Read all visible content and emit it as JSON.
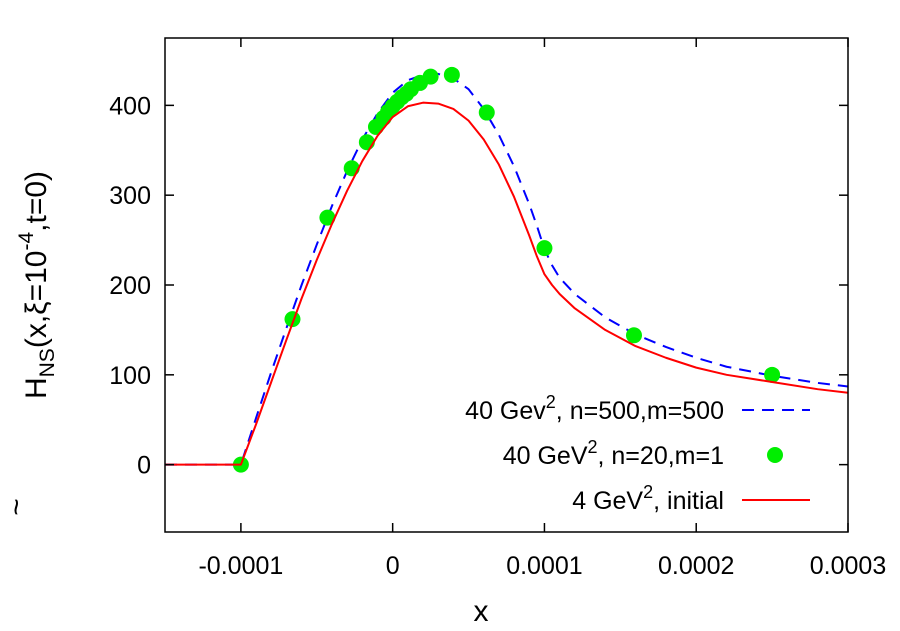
{
  "chart_data": {
    "type": "line",
    "xlabel": "x",
    "ylabel": {
      "prefix": "H",
      "accent": "~",
      "subscript": "NS",
      "middle": "(x,ξ=10",
      "superscript": "-4",
      "suffix": ",t=0)"
    },
    "xlim": [
      -0.00015,
      0.0003
    ],
    "ylim": [
      -75,
      475
    ],
    "xticks": [
      -0.0001,
      0,
      0.0001,
      0.0002,
      0.0003
    ],
    "xtick_labels": [
      "-0.0001",
      "0",
      "0.0001",
      "0.0002",
      "0.0003"
    ],
    "yticks": [
      0,
      100,
      200,
      300,
      400
    ],
    "ytick_labels": [
      "0",
      "100",
      "200",
      "300",
      "400"
    ],
    "grid": false,
    "legend_position": "bottom-right",
    "series": [
      {
        "name": "40 Gev², n=500,m=500",
        "legend_label": {
          "main": "40 Gev",
          "sup": "2",
          "rest": ", n=500,m=500"
        },
        "style": "dashed-line",
        "color": "#0000ff",
        "points": [
          [
            -0.00015,
            0
          ],
          [
            -0.0001,
            0
          ],
          [
            -9e-05,
            52
          ],
          [
            -8e-05,
            103
          ],
          [
            -7e-05,
            152
          ],
          [
            -6e-05,
            200
          ],
          [
            -5e-05,
            245
          ],
          [
            -4e-05,
            288
          ],
          [
            -3e-05,
            327
          ],
          [
            -2e-05,
            362
          ],
          [
            -1e-05,
            391
          ],
          [
            0,
            414
          ],
          [
            1e-05,
            428
          ],
          [
            2e-05,
            434
          ],
          [
            2.5e-05,
            435
          ],
          [
            3e-05,
            435
          ],
          [
            4e-05,
            430
          ],
          [
            5e-05,
            418
          ],
          [
            6e-05,
            396
          ],
          [
            7e-05,
            367
          ],
          [
            8e-05,
            332
          ],
          [
            9e-05,
            290
          ],
          [
            9.5e-05,
            266
          ],
          [
            0.0001,
            240
          ],
          [
            0.000105,
            222
          ],
          [
            0.00011,
            208
          ],
          [
            0.00012,
            190
          ],
          [
            0.00014,
            164
          ],
          [
            0.00016,
            145
          ],
          [
            0.00018,
            131
          ],
          [
            0.0002,
            119
          ],
          [
            0.00022,
            109
          ],
          [
            0.00025,
            99
          ],
          [
            0.00028,
            91
          ],
          [
            0.0003,
            87
          ]
        ]
      },
      {
        "name": "40 GeV², n=20,m=1",
        "legend_label": {
          "main": "40 GeV",
          "sup": "2",
          "rest": ", n=20,m=1"
        },
        "style": "points",
        "color": "#00ee00",
        "points": [
          [
            -0.0001,
            0
          ],
          [
            -6.6e-05,
            162
          ],
          [
            -4.3e-05,
            275
          ],
          [
            -2.7e-05,
            330
          ],
          [
            -1.7e-05,
            359
          ],
          [
            -1.1e-05,
            376
          ],
          [
            -6e-06,
            386
          ],
          [
            -3e-06,
            393
          ],
          [
            0,
            399
          ],
          [
            3e-06,
            404
          ],
          [
            6e-06,
            409
          ],
          [
            9e-06,
            413
          ],
          [
            1.2e-05,
            418
          ],
          [
            1.8e-05,
            425
          ],
          [
            2.5e-05,
            432
          ],
          [
            3.9e-05,
            434
          ],
          [
            6.2e-05,
            392
          ],
          [
            0.0001,
            241
          ],
          [
            0.000159,
            144
          ],
          [
            0.00025,
            100
          ]
        ]
      },
      {
        "name": "4 GeV², initial",
        "legend_label": {
          "main": "4 GeV",
          "sup": "2",
          "rest": ", initial"
        },
        "style": "solid-line",
        "color": "#ff0000",
        "points": [
          [
            -0.00015,
            0
          ],
          [
            -0.0001,
            0
          ],
          [
            -9e-05,
            45
          ],
          [
            -8e-05,
            92
          ],
          [
            -7e-05,
            139
          ],
          [
            -6e-05,
            185
          ],
          [
            -5e-05,
            228
          ],
          [
            -4e-05,
            268
          ],
          [
            -3e-05,
            305
          ],
          [
            -2e-05,
            338
          ],
          [
            -1e-05,
            366
          ],
          [
            0,
            387
          ],
          [
            1e-05,
            399
          ],
          [
            2e-05,
            403
          ],
          [
            3e-05,
            402
          ],
          [
            4e-05,
            396
          ],
          [
            5e-05,
            383
          ],
          [
            6e-05,
            362
          ],
          [
            7e-05,
            334
          ],
          [
            8e-05,
            298
          ],
          [
            9e-05,
            255
          ],
          [
            9.5e-05,
            232
          ],
          [
            0.0001,
            212
          ],
          [
            0.000105,
            200
          ],
          [
            0.00011,
            190
          ],
          [
            0.00012,
            174
          ],
          [
            0.00014,
            150
          ],
          [
            0.00016,
            132
          ],
          [
            0.00018,
            119
          ],
          [
            0.0002,
            108
          ],
          [
            0.00022,
            100
          ],
          [
            0.00025,
            92
          ],
          [
            0.00028,
            84
          ],
          [
            0.0003,
            80
          ]
        ]
      }
    ]
  }
}
